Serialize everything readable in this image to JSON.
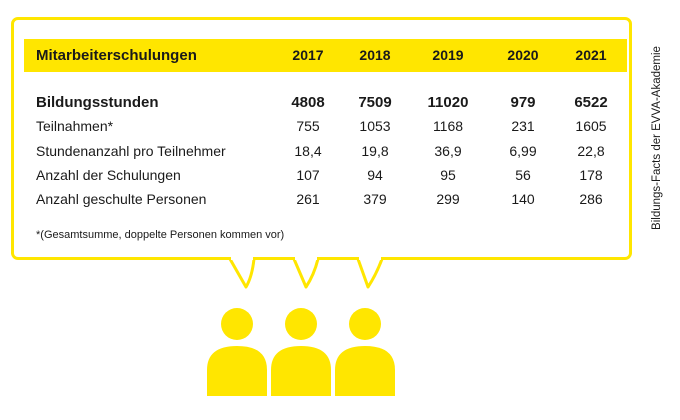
{
  "table": {
    "title": "Mitarbeiterschulungen",
    "years": [
      "2017",
      "2018",
      "2019",
      "2020",
      "2021"
    ],
    "rows": [
      {
        "label": "Bildungsstunden",
        "values": [
          "4808",
          "7509",
          "11020",
          "979",
          "6522"
        ]
      },
      {
        "label": "Teilnahmen*",
        "values": [
          "755",
          "1053",
          "1168",
          "231",
          "1605"
        ]
      },
      {
        "label": "Stundenanzahl pro Teilnehmer",
        "values": [
          "18,4",
          "19,8",
          "36,9",
          "6,99",
          "22,8"
        ]
      },
      {
        "label": "Anzahl der Schulungen",
        "values": [
          "107",
          "94",
          "95",
          "56",
          "178"
        ]
      },
      {
        "label": "Anzahl geschulte Personen",
        "values": [
          "261",
          "379",
          "299",
          "140",
          "286"
        ]
      }
    ],
    "footnote": "*(Gesamtsumme, doppelte Personen kommen vor)"
  },
  "side_caption": "Bildungs-Facts der EVVA-Akademie",
  "colors": {
    "accent": "#ffe600",
    "text": "#1a1a1a"
  },
  "icons": [
    "speech-bubble-tail",
    "person-icon"
  ]
}
